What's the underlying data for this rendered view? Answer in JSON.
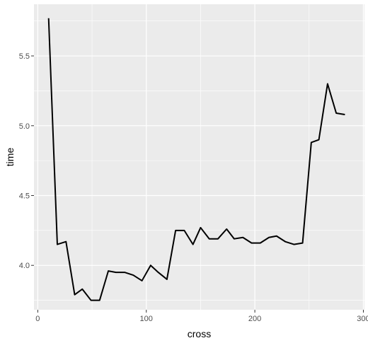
{
  "chart_data": {
    "type": "line",
    "title": "",
    "xlabel": "cross",
    "ylabel": "time",
    "xlim": [
      -3.5,
      301
    ],
    "ylim": [
      3.682,
      5.87
    ],
    "x_ticks": [
      0,
      100,
      200,
      300
    ],
    "x_minor_ticks": [
      50,
      150,
      250
    ],
    "y_ticks": [
      4.0,
      4.5,
      5.0,
      5.5
    ],
    "y_tick_labels": [
      "4.0",
      "4.5",
      "5.0",
      "5.5"
    ],
    "y_minor_ticks": [
      3.75,
      4.25,
      4.75,
      5.25,
      5.75
    ],
    "grid": true,
    "colors": {
      "panel": "#ebebeb",
      "grid": "#ffffff",
      "line": "#000000",
      "tick_text": "#4d4d4d",
      "tick": "#333333"
    },
    "series": [
      {
        "values": [
          {
            "x": 10,
            "y": 5.77
          },
          {
            "x": 18,
            "y": 4.15
          },
          {
            "x": 26,
            "y": 4.17
          },
          {
            "x": 34,
            "y": 3.79
          },
          {
            "x": 41,
            "y": 3.83
          },
          {
            "x": 49,
            "y": 3.75
          },
          {
            "x": 57,
            "y": 3.75
          },
          {
            "x": 65,
            "y": 3.96
          },
          {
            "x": 72,
            "y": 3.95
          },
          {
            "x": 80,
            "y": 3.95
          },
          {
            "x": 88,
            "y": 3.93
          },
          {
            "x": 96,
            "y": 3.89
          },
          {
            "x": 104,
            "y": 4.0
          },
          {
            "x": 111,
            "y": 3.95
          },
          {
            "x": 119,
            "y": 3.9
          },
          {
            "x": 127,
            "y": 4.25
          },
          {
            "x": 135,
            "y": 4.25
          },
          {
            "x": 143,
            "y": 4.15
          },
          {
            "x": 150,
            "y": 4.27
          },
          {
            "x": 158,
            "y": 4.19
          },
          {
            "x": 166,
            "y": 4.19
          },
          {
            "x": 174,
            "y": 4.26
          },
          {
            "x": 181,
            "y": 4.19
          },
          {
            "x": 189,
            "y": 4.2
          },
          {
            "x": 197,
            "y": 4.16
          },
          {
            "x": 205,
            "y": 4.16
          },
          {
            "x": 213,
            "y": 4.2
          },
          {
            "x": 220,
            "y": 4.21
          },
          {
            "x": 228,
            "y": 4.17
          },
          {
            "x": 236,
            "y": 4.15
          },
          {
            "x": 244,
            "y": 4.16
          },
          {
            "x": 252,
            "y": 4.88
          },
          {
            "x": 259,
            "y": 4.9
          },
          {
            "x": 267,
            "y": 5.3
          },
          {
            "x": 275,
            "y": 5.09
          },
          {
            "x": 283,
            "y": 5.08
          }
        ]
      }
    ]
  }
}
